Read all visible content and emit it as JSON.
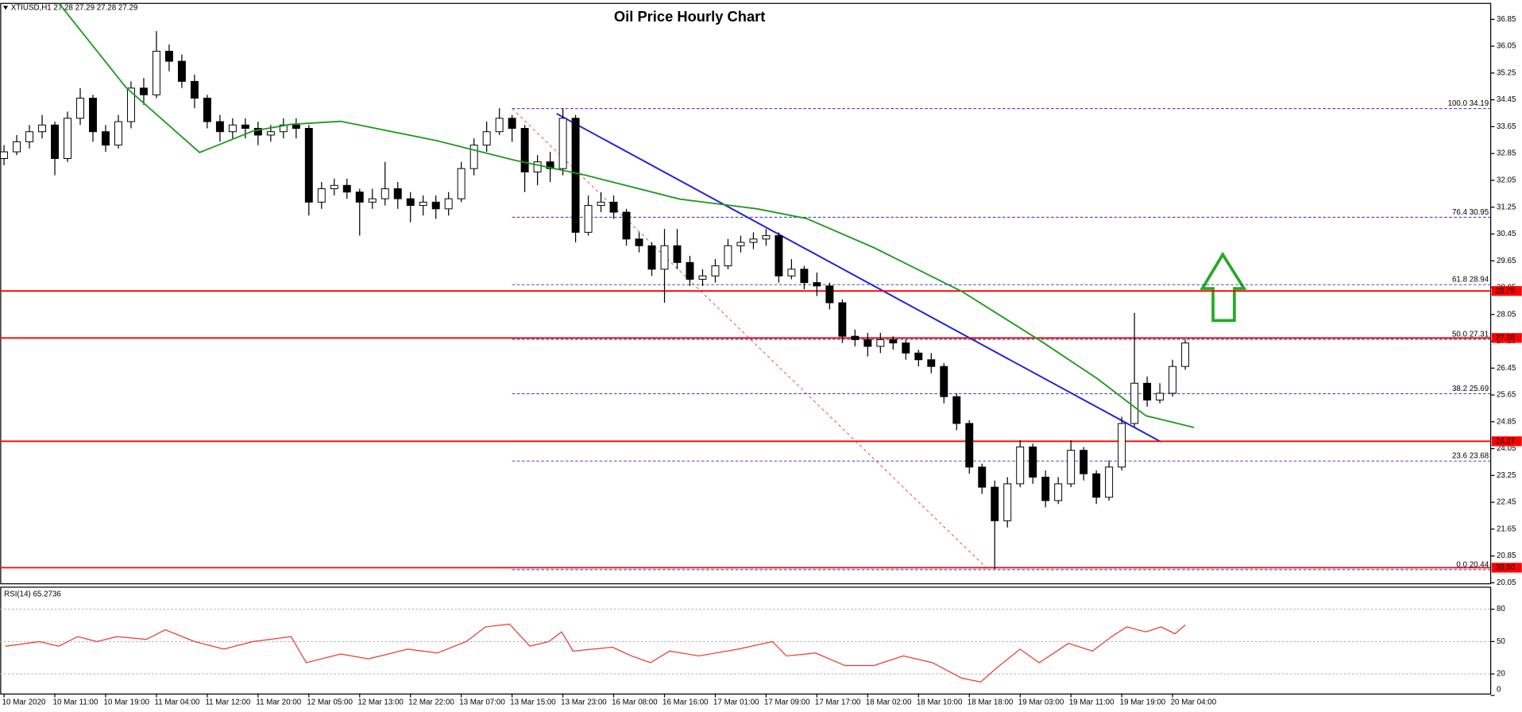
{
  "chart_data": [
    {
      "type": "candlestick",
      "title": "Oil Price Hourly Chart",
      "info": "XTIUSD,H1  27.28 27.29 27.28 27.29",
      "x": [
        0,
        1,
        2,
        3,
        4,
        5,
        6,
        7,
        8,
        9,
        10,
        11,
        12,
        13,
        14,
        15,
        16,
        17,
        18,
        19,
        20,
        21,
        22,
        23,
        24,
        25,
        26,
        27,
        28,
        29,
        30,
        31,
        32,
        33,
        34,
        35,
        36,
        37,
        38,
        39,
        40,
        41,
        42,
        43,
        44,
        45,
        46,
        47,
        48,
        49,
        50,
        51,
        52,
        53,
        54,
        55,
        56,
        57,
        58,
        59,
        60,
        61,
        62,
        63,
        64,
        65,
        66,
        67,
        68,
        69,
        70,
        71,
        72,
        73,
        74,
        75,
        76,
        77,
        78,
        79,
        80,
        81,
        82,
        83,
        84,
        85,
        86,
        87,
        88,
        89,
        90,
        91,
        92,
        93
      ],
      "open": [
        32.7,
        32.9,
        33.2,
        33.5,
        33.7,
        32.7,
        33.9,
        34.5,
        33.5,
        33.1,
        33.8,
        34.8,
        34.6,
        35.9,
        35.6,
        35.0,
        34.5,
        33.8,
        33.5,
        33.7,
        33.6,
        33.4,
        33.5,
        33.7,
        33.6,
        31.4,
        31.8,
        31.9,
        31.7,
        31.4,
        31.5,
        31.8,
        31.5,
        31.3,
        31.4,
        31.2,
        31.5,
        32.4,
        33.1,
        33.5,
        33.9,
        33.6,
        32.3,
        32.6,
        32.4,
        33.9,
        30.5,
        31.3,
        31.4,
        31.1,
        30.3,
        30.1,
        29.4,
        30.1,
        29.6,
        29.1,
        29.2,
        29.5,
        30.1,
        30.2,
        30.3,
        30.4,
        29.2,
        29.4,
        29.0,
        28.9,
        28.4,
        27.4,
        27.3,
        27.1,
        27.3,
        27.2,
        26.9,
        26.7,
        26.5,
        25.6,
        24.8,
        23.5,
        22.9,
        21.9,
        23.0,
        24.1,
        23.2,
        22.5,
        23.0,
        24.0,
        23.3,
        22.6,
        23.5,
        24.8,
        26.0,
        25.5,
        25.7,
        26.5
      ],
      "high": [
        33.1,
        33.4,
        33.7,
        34.0,
        33.8,
        34.1,
        34.8,
        34.6,
        33.7,
        34.0,
        35.0,
        35.1,
        36.5,
        36.1,
        35.8,
        35.2,
        34.6,
        34.0,
        33.9,
        33.9,
        33.8,
        33.7,
        33.9,
        33.9,
        33.7,
        32.0,
        32.1,
        32.1,
        31.8,
        31.8,
        32.6,
        32.0,
        31.7,
        31.6,
        31.6,
        31.7,
        32.6,
        33.3,
        33.8,
        34.2,
        34.0,
        33.7,
        32.8,
        32.9,
        34.2,
        34.0,
        31.6,
        31.7,
        31.6,
        31.2,
        30.5,
        30.2,
        30.6,
        30.6,
        29.8,
        29.4,
        29.7,
        30.3,
        30.4,
        30.5,
        30.6,
        30.5,
        29.7,
        29.5,
        29.3,
        29.0,
        28.5,
        27.6,
        27.5,
        27.5,
        27.4,
        27.3,
        27.0,
        26.9,
        26.6,
        25.7,
        24.9,
        23.6,
        23.1,
        23.2,
        24.3,
        24.2,
        23.4,
        23.2,
        24.3,
        24.1,
        23.4,
        23.7,
        25.0,
        28.1,
        26.2,
        26.0,
        26.7,
        27.3
      ],
      "low": [
        32.5,
        32.8,
        33.0,
        33.3,
        32.2,
        32.6,
        33.7,
        33.2,
        32.9,
        33.0,
        33.6,
        34.3,
        34.5,
        35.3,
        34.8,
        34.2,
        33.6,
        33.2,
        33.3,
        33.3,
        33.1,
        33.2,
        33.3,
        33.3,
        31.0,
        31.2,
        31.6,
        31.5,
        30.4,
        31.2,
        31.3,
        31.2,
        30.8,
        31.0,
        30.9,
        31.0,
        31.4,
        32.2,
        32.9,
        33.4,
        33.2,
        31.7,
        31.9,
        32.0,
        32.2,
        30.2,
        30.4,
        31.1,
        30.9,
        30.1,
        29.9,
        29.2,
        28.4,
        29.4,
        28.9,
        28.9,
        29.0,
        29.4,
        29.9,
        30.0,
        30.1,
        29.0,
        29.1,
        28.8,
        28.6,
        28.2,
        27.2,
        27.1,
        26.8,
        26.9,
        27.0,
        26.7,
        26.5,
        26.3,
        25.4,
        24.6,
        23.3,
        22.7,
        20.46,
        21.7,
        22.9,
        23.0,
        22.3,
        22.4,
        22.9,
        23.1,
        22.4,
        22.5,
        23.4,
        24.7,
        25.3,
        25.4,
        25.6,
        26.4
      ],
      "close": [
        32.9,
        33.2,
        33.5,
        33.7,
        32.7,
        33.9,
        34.5,
        33.5,
        33.1,
        33.8,
        34.8,
        34.6,
        35.9,
        35.6,
        35.0,
        34.5,
        33.8,
        33.5,
        33.7,
        33.6,
        33.4,
        33.5,
        33.7,
        33.6,
        31.4,
        31.8,
        31.9,
        31.7,
        31.4,
        31.5,
        31.8,
        31.5,
        31.3,
        31.4,
        31.2,
        31.5,
        32.4,
        33.1,
        33.5,
        33.9,
        33.6,
        32.3,
        32.6,
        32.4,
        33.9,
        30.5,
        31.3,
        31.4,
        31.1,
        30.3,
        30.1,
        29.4,
        30.1,
        29.6,
        29.1,
        29.2,
        29.5,
        30.1,
        30.2,
        30.3,
        30.4,
        29.2,
        29.4,
        29.0,
        28.9,
        28.4,
        27.4,
        27.3,
        27.1,
        27.3,
        27.2,
        26.9,
        26.7,
        26.5,
        25.6,
        24.8,
        23.5,
        22.9,
        21.9,
        23.0,
        24.1,
        23.2,
        22.5,
        23.0,
        24.0,
        23.3,
        22.6,
        23.5,
        24.8,
        26.0,
        25.5,
        25.7,
        26.5,
        27.2
      ],
      "up_color": "#ffffff",
      "down_color": "#000000",
      "outline_color": "#000000",
      "xlim": [
        -0.3,
        117.05
      ],
      "xticks": [
        {
          "value": 0,
          "label": "10 Mar 2020"
        },
        {
          "value": 4,
          "label": "10 Mar 11:00"
        },
        {
          "value": 8,
          "label": "10 Mar 19:00"
        },
        {
          "value": 12,
          "label": "11 Mar 04:00"
        },
        {
          "value": 16,
          "label": "11 Mar 12:00"
        },
        {
          "value": 20,
          "label": "11 Mar 20:00"
        },
        {
          "value": 24,
          "label": "12 Mar 05:00"
        },
        {
          "value": 28,
          "label": "12 Mar 13:00"
        },
        {
          "value": 32,
          "label": "12 Mar 22:00"
        },
        {
          "value": 36,
          "label": "13 Mar 07:00"
        },
        {
          "value": 40,
          "label": "13 Mar 15:00"
        },
        {
          "value": 44,
          "label": "13 Mar 23:00"
        },
        {
          "value": 48,
          "label": "16 Mar 08:00"
        },
        {
          "value": 52,
          "label": "16 Mar 16:00"
        },
        {
          "value": 56,
          "label": "17 Mar 01:00"
        },
        {
          "value": 60,
          "label": "17 Mar 09:00"
        },
        {
          "value": 64,
          "label": "17 Mar 17:00"
        },
        {
          "value": 68,
          "label": "18 Mar 02:00"
        },
        {
          "value": 72,
          "label": "18 Mar 10:00"
        },
        {
          "value": 76,
          "label": "18 Mar 18:00"
        },
        {
          "value": 80,
          "label": "19 Mar 03:00"
        },
        {
          "value": 84,
          "label": "19 Mar 11:00"
        },
        {
          "value": 88,
          "label": "19 Mar 19:00"
        },
        {
          "value": 92,
          "label": "20 Mar 04:00"
        }
      ],
      "ylim": [
        20.02,
        37.34
      ],
      "yticks": [
        20.05,
        20.85,
        21.65,
        22.45,
        23.25,
        24.05,
        24.85,
        25.65,
        26.45,
        27.25,
        28.05,
        28.85,
        29.65,
        30.45,
        31.25,
        32.05,
        32.85,
        33.65,
        34.45,
        35.25,
        36.05,
        36.85
      ],
      "grid": false,
      "overlays": [
        {
          "type": "line",
          "color": "#1e9a1e",
          "x": [
            4.3,
            9.6,
            15.4,
            19.6,
            22.6,
            26.5,
            34.1,
            40.2,
            45.6,
            53.2,
            59.3,
            63.2,
            68.5,
            75.4,
            81.5,
            86.1,
            89.9,
            93.7
          ],
          "values": [
            37.34,
            34.82,
            32.88,
            33.52,
            33.72,
            33.81,
            33.23,
            32.65,
            32.22,
            31.49,
            31.2,
            30.91,
            30.04,
            28.74,
            27.29,
            26.13,
            25.03,
            24.68
          ]
        }
      ],
      "trendlines": [
        {
          "color": "#1f1fe0",
          "x": [
            43.5,
            91.1
          ],
          "y": [
            34.04,
            24.25
          ]
        },
        {
          "color": "#e05050",
          "x": [
            40.0,
            77.5
          ],
          "y": [
            34.19,
            20.44
          ],
          "dashed": true
        }
      ],
      "levels_color": "#ff0000",
      "levels": [
        28.75,
        27.35,
        24.27,
        {
          "value": 20.5,
          "label": "20.50"
        }
      ],
      "fib_color": "#2d2dcc",
      "fib_x_start": 40.0,
      "fib_levels": [
        {
          "value": 34.19,
          "label": "100.0 34.19"
        },
        {
          "value": 30.95,
          "label": "76.4 30.95"
        },
        {
          "value": 28.94,
          "label": "61.8 28.94"
        },
        {
          "value": 27.31,
          "label": "50.0 27.31"
        },
        {
          "value": 25.69,
          "label": "38.2 25.69"
        },
        {
          "value": 23.68,
          "label": "23.6 23.68"
        },
        {
          "value": 20.44,
          "label": "0.0 20.44"
        }
      ]
    },
    {
      "type": "line",
      "title": "RSI(14) 65.2736",
      "color": "#e8392d",
      "x": [
        0.1,
        2.8,
        4.3,
        5.8,
        7.3,
        8.9,
        11.2,
        12.7,
        15.0,
        17.3,
        19.6,
        22.6,
        23.8,
        26.5,
        28.7,
        31.8,
        34.1,
        36.4,
        37.9,
        39.8,
        41.4,
        42.9,
        43.9,
        44.8,
        47.9,
        49.4,
        50.9,
        52.4,
        54.7,
        57.8,
        60.5,
        61.6,
        63.9,
        66.2,
        68.5,
        70.8,
        73.1,
        75.4,
        76.9,
        78.1,
        80.0,
        81.5,
        83.8,
        85.7,
        87.2,
        88.4,
        89.9,
        91.1,
        92.2,
        93.0
      ],
      "values": [
        45.7,
        50,
        45.7,
        54.6,
        50,
        54.6,
        52,
        60.9,
        50,
        43,
        50,
        54.6,
        30.4,
        38.5,
        34,
        43,
        39.4,
        50,
        63.6,
        66.2,
        45.7,
        50,
        59,
        41.2,
        44.8,
        36.7,
        30.4,
        41.2,
        36.7,
        43,
        50,
        36.7,
        39.4,
        27.8,
        27.8,
        36.7,
        30.4,
        16.1,
        12.5,
        25.1,
        43,
        30.4,
        48.3,
        41.2,
        54.6,
        63.6,
        59,
        63.6,
        57.3,
        65.4
      ],
      "ylim": [
        0,
        100
      ],
      "yticks": [
        0,
        20,
        50,
        80
      ],
      "levels": [
        20,
        50,
        80
      ]
    }
  ]
}
